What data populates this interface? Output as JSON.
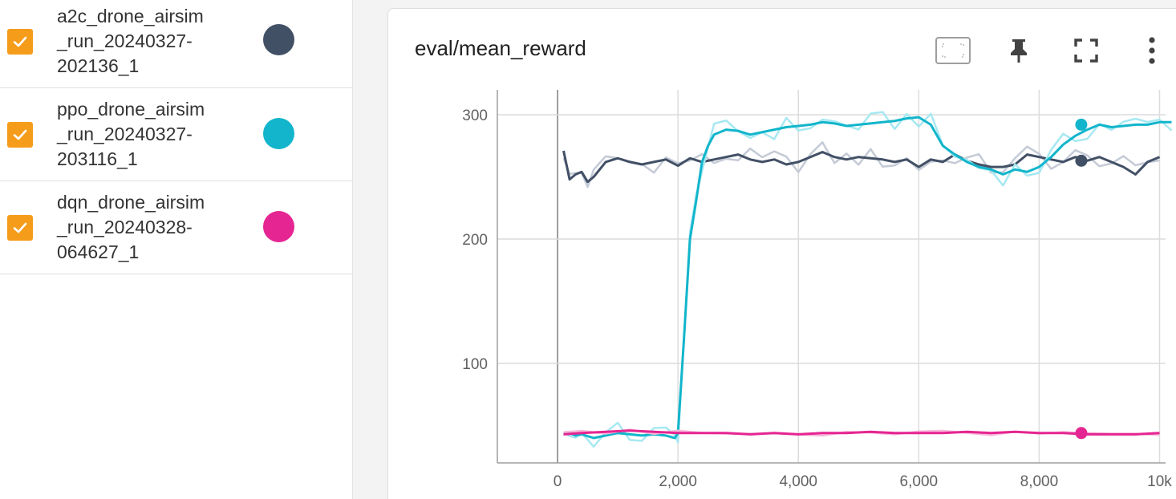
{
  "runs": [
    {
      "name": "a2c_drone_airsim\n_run_20240327-\n202136_1",
      "color": "#425066",
      "checked": true
    },
    {
      "name": "ppo_drone_airsim\n_run_20240327-\n203116_1",
      "color": "#12b5cb",
      "checked": true
    },
    {
      "name": "dqn_drone_airsim\n_run_20240328-\n064627_1",
      "color": "#e52592",
      "checked": true
    }
  ],
  "card": {
    "title": "eval/mean_reward",
    "tools": [
      "fit-domain-icon",
      "pin-icon",
      "fullscreen-icon",
      "more-vert-icon"
    ]
  },
  "chart_data": {
    "type": "line",
    "xlabel": "",
    "ylabel": "",
    "xlim": [
      -1000,
      10100
    ],
    "ylim": [
      20,
      320
    ],
    "x_ticks": [
      0,
      2000,
      4000,
      6000,
      8000,
      10000
    ],
    "x_tick_labels": [
      "0",
      "2,000",
      "4,000",
      "6,000",
      "8,000",
      "10k"
    ],
    "y_ticks": [
      100,
      200,
      300
    ],
    "y_tick_labels": [
      "100",
      "200",
      "300"
    ],
    "grid": true,
    "series": [
      {
        "name": "a2c_drone_airsim_run_20240327-202136_1",
        "color": "#425066",
        "raw_color": "#c4cad6",
        "x": [
          100,
          200,
          300,
          400,
          500,
          600,
          800,
          1000,
          1200,
          1400,
          1600,
          1800,
          2000,
          2200,
          2400,
          2600,
          2800,
          3000,
          3200,
          3400,
          3600,
          3800,
          4000,
          4200,
          4400,
          4600,
          4800,
          5000,
          5200,
          5400,
          5600,
          5800,
          6000,
          6200,
          6400,
          6600,
          6800,
          7000,
          7200,
          7400,
          7600,
          7800,
          8000,
          8200,
          8400,
          8600,
          8800,
          9000,
          9200,
          9400,
          9600,
          9800,
          10000
        ],
        "y": [
          271,
          248,
          252,
          254,
          246,
          250,
          262,
          265,
          262,
          260,
          262,
          264,
          259,
          265,
          262,
          264,
          266,
          268,
          264,
          262,
          264,
          260,
          262,
          266,
          270,
          266,
          264,
          266,
          265,
          264,
          262,
          264,
          258,
          264,
          262,
          268,
          263,
          260,
          258,
          258,
          260,
          268,
          266,
          264,
          262,
          266,
          263,
          266,
          262,
          258,
          252,
          262,
          266
        ],
        "marker_x": 8700,
        "marker_y": 263
      },
      {
        "name": "ppo_drone_airsim_run_20240327-203116_1",
        "color": "#12b5cb",
        "raw_color": "#a6e8f2",
        "x": [
          100,
          200,
          300,
          400,
          600,
          800,
          1000,
          1200,
          1400,
          1600,
          1800,
          1950,
          2000,
          2100,
          2200,
          2300,
          2400,
          2500,
          2600,
          2800,
          3000,
          3200,
          3400,
          3600,
          3800,
          4000,
          4200,
          4400,
          4600,
          4800,
          5000,
          5200,
          5400,
          5600,
          5800,
          6000,
          6200,
          6400,
          6600,
          6800,
          7000,
          7200,
          7400,
          7600,
          7800,
          8000,
          8200,
          8400,
          8600,
          8800,
          9000,
          9200,
          9400,
          9600,
          9800,
          10000,
          10200
        ],
        "y": [
          43,
          44,
          42,
          43,
          40,
          42,
          44,
          43,
          42,
          43,
          42,
          40,
          44,
          120,
          200,
          230,
          262,
          275,
          284,
          288,
          287,
          284,
          286,
          288,
          290,
          291,
          292,
          294,
          293,
          291,
          292,
          293,
          294,
          295,
          297,
          298,
          292,
          275,
          268,
          262,
          258,
          256,
          252,
          256,
          254,
          258,
          266,
          276,
          283,
          288,
          292,
          290,
          291,
          292,
          292,
          294,
          294
        ],
        "marker_x": 8700,
        "marker_y": 292
      },
      {
        "name": "dqn_drone_airsim_run_20240328-064627_1",
        "color": "#e52592",
        "raw_color": "#f6b8d9",
        "x": [
          100,
          400,
          800,
          1200,
          1600,
          2000,
          2400,
          2800,
          3200,
          3600,
          4000,
          4400,
          4800,
          5200,
          5600,
          6000,
          6400,
          6800,
          7200,
          7600,
          8000,
          8400,
          8800,
          9200,
          9600,
          10000
        ],
        "y": [
          43,
          44,
          45,
          46,
          45,
          44,
          44,
          44,
          43,
          44,
          43,
          44,
          44,
          45,
          44,
          44,
          44,
          45,
          44,
          45,
          44,
          44,
          43,
          43,
          43,
          44
        ],
        "marker_x": 8700,
        "marker_y": 44
      }
    ]
  }
}
